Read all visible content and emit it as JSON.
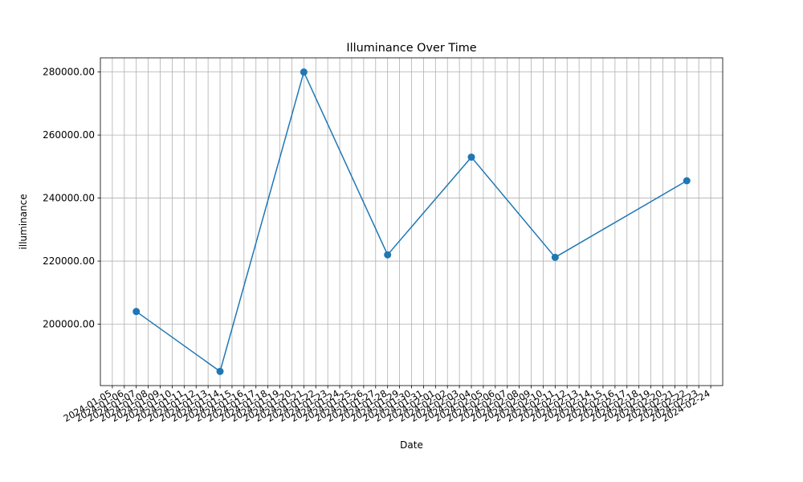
{
  "chart_data": {
    "type": "line",
    "title": "Illuminance Over Time",
    "xlabel": "Date",
    "ylabel": "illuminance",
    "grid": true,
    "color": "#1f77b4",
    "x": [
      "2024-01-07",
      "2024-01-14",
      "2024-01-21",
      "2024-01-28",
      "2024-02-04",
      "2024-02-11",
      "2024-02-22"
    ],
    "series": [
      {
        "values": [
          204000,
          185000,
          280000,
          222000,
          253000,
          221200,
          245500
        ]
      }
    ],
    "xlim": [
      "2024-01-04",
      "2024-02-25"
    ],
    "ylim": [
      180500,
      284500
    ],
    "yticks": [
      200000,
      220000,
      240000,
      260000,
      280000
    ],
    "ytick_format": "fixed2",
    "xticks_start": "2024-01-05",
    "xticks_end": "2024-02-24"
  }
}
